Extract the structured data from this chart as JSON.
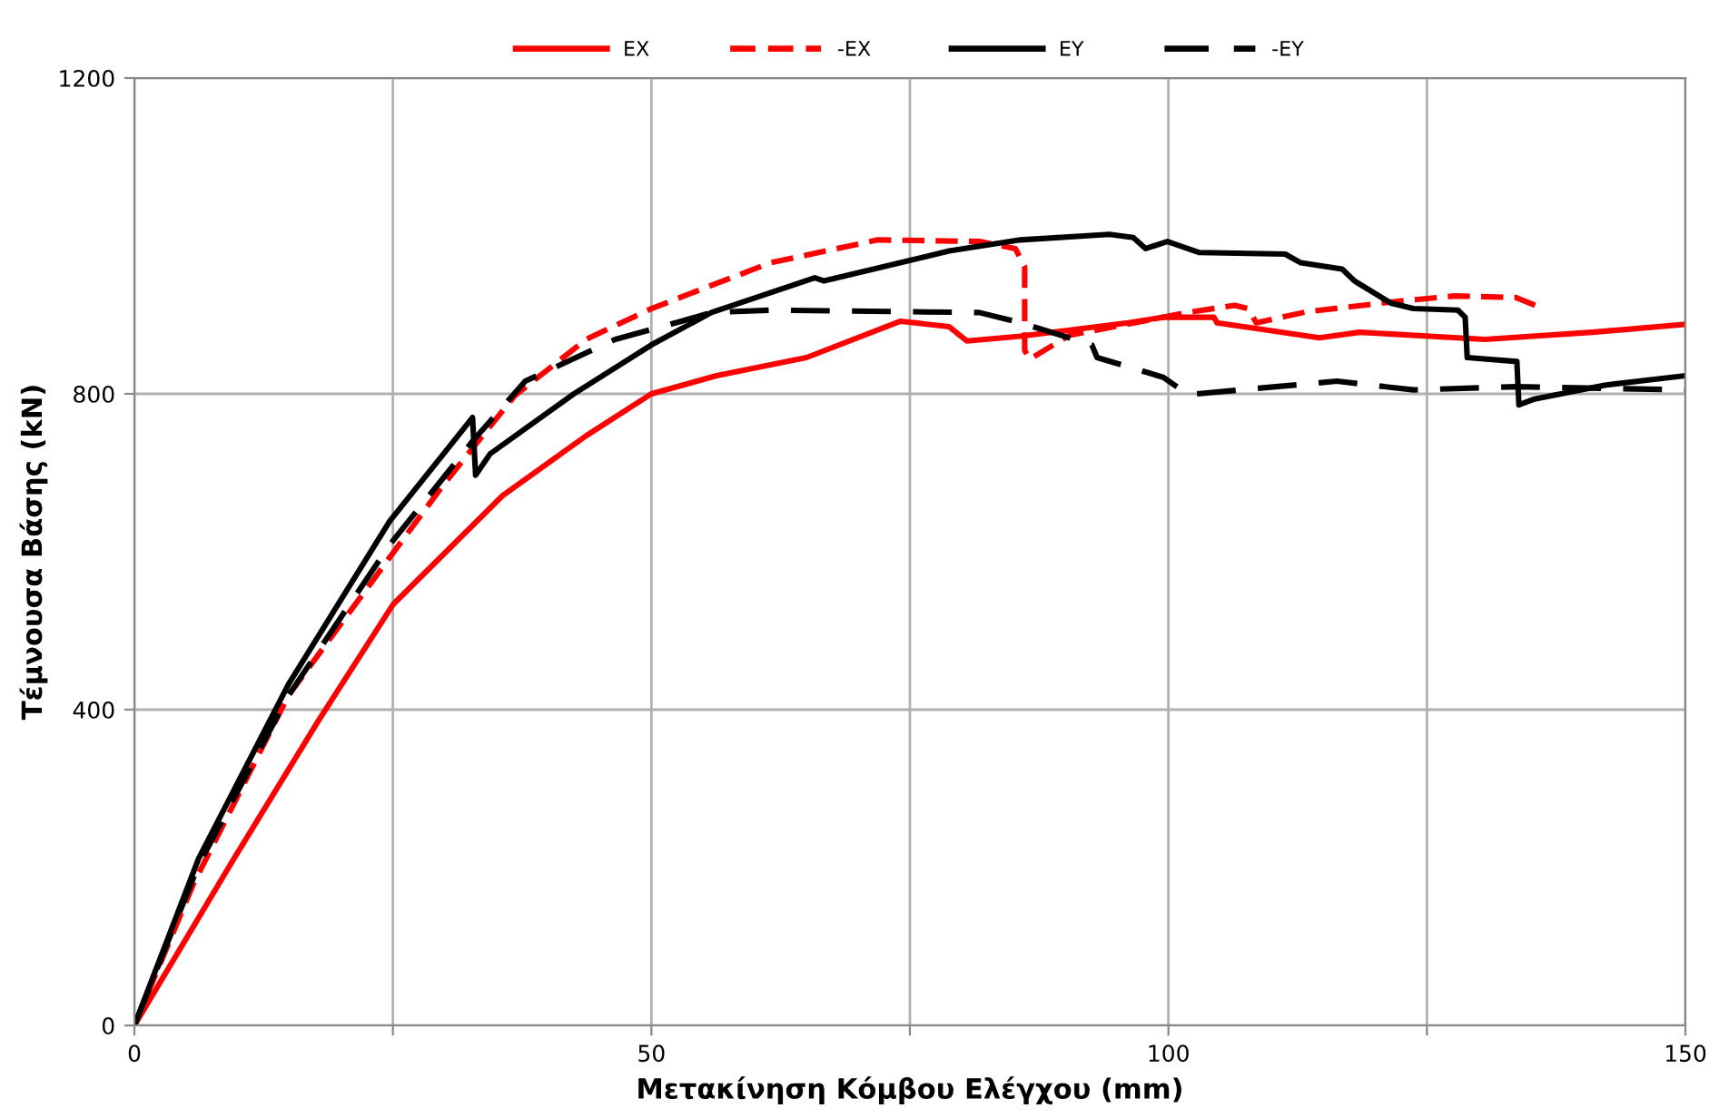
{
  "chart_data": {
    "type": "line",
    "xlabel": "Μετακίνηση Κόμβου Ελέγχου (mm)",
    "ylabel": "Τέμνουσα Βάσης (kN)",
    "xlim": [
      0,
      150
    ],
    "ylim": [
      0,
      1200
    ],
    "xticks": [
      0,
      {
        "value": 25,
        "label": null
      },
      50,
      {
        "value": 75,
        "label": null
      },
      100,
      {
        "value": 125,
        "label": null
      },
      150
    ],
    "yticks": [
      0,
      400,
      800,
      1200
    ],
    "grid": true,
    "legend": "top",
    "marker": "none",
    "series": [
      {
        "name": "EX",
        "color": "#ff0000",
        "line_style": "solid",
        "x": [
          0,
          9.2,
          17.8,
          25,
          35.6,
          43.7,
          50,
          56.3,
          65,
          74.1,
          78.8,
          80.5,
          85.7,
          96.1,
          99.5,
          104.4,
          104.7,
          109.4,
          114.6,
          118.5,
          130.6,
          141,
          150
        ],
        "values": [
          0,
          202,
          386,
          533,
          671,
          747,
          800,
          823,
          846,
          892,
          885,
          867,
          873,
          890,
          897,
          897,
          890,
          881,
          871,
          878,
          869,
          878,
          888
        ]
      },
      {
        "name": "-EX",
        "color": "#ff0000",
        "line_style": "dashed",
        "x": [
          0,
          5.7,
          14.9,
          24.7,
          29.9,
          32.7,
          36.8,
          43.7,
          50,
          61.5,
          71.9,
          81.7,
          85.2,
          86.1,
          86.1,
          86.6,
          90.4,
          99.5,
          101.8,
          106.4,
          107.7,
          108.5,
          113.4,
          122,
          127.7,
          133.6,
          135.5
        ],
        "values": [
          0,
          179,
          418,
          593,
          685,
          731,
          798,
          869,
          908,
          966,
          995,
          993,
          984,
          961,
          855,
          844,
          874,
          897,
          903,
          912,
          908,
          890,
          904,
          917,
          924,
          922,
          912
        ]
      },
      {
        "name": "EY",
        "color": "#000000",
        "line_style": "solid",
        "x": [
          0,
          6.2,
          14.9,
          24.7,
          29.9,
          32.7,
          33,
          34.4,
          42.5,
          50,
          55.8,
          65.8,
          66.7,
          78.8,
          85.7,
          94.3,
          96.6,
          97.8,
          99.9,
          103,
          111.3,
          112.8,
          116.8,
          118,
          121.5,
          123.7,
          128,
          128.7,
          128.9,
          133.7,
          133.9,
          135.3,
          142.2,
          150
        ],
        "values": [
          0,
          211,
          432,
          639,
          724,
          770,
          697,
          724,
          800,
          862,
          903,
          947,
          943,
          981,
          995,
          1002,
          998,
          984,
          993,
          979,
          977,
          966,
          958,
          943,
          915,
          908,
          906,
          897,
          846,
          841,
          786,
          793,
          811,
          823
        ]
      },
      {
        "name": "-EY",
        "color": "#000000",
        "line_style": "dashdot",
        "x": [
          0,
          6.2,
          14.9,
          24.7,
          29.9,
          32.7,
          37.8,
          46.5,
          52.9,
          55.8,
          61.5,
          81.7,
          85.7,
          92.6,
          93.1,
          99.5,
          101.8,
          102.7,
          116.3,
          123.7,
          133.6,
          150
        ],
        "values": [
          0,
          203,
          418,
          609,
          694,
          740,
          816,
          869,
          892,
          903,
          906,
          903,
          890,
          862,
          846,
          821,
          800,
          800,
          816,
          805,
          809,
          805
        ]
      }
    ]
  }
}
